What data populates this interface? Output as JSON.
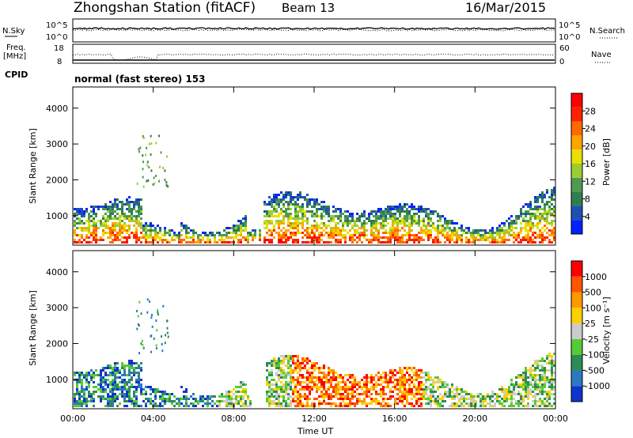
{
  "header": {
    "station": "Zhongshan Station (fitACF)",
    "beam": "Beam 13",
    "date": "16/Mar/2015"
  },
  "status_panels": {
    "nsky_label": "N.Sky",
    "nsky_ticks": [
      "10^5",
      "10^0"
    ],
    "nsearch_label": "N.Search",
    "nsearch_ticks": [
      "10^5",
      "10^0"
    ],
    "freq_label": "Freq.",
    "freq_unit": "[MHz]",
    "freq_ticks": [
      "18",
      "8"
    ],
    "nave_label": "Nave",
    "nave_ticks": [
      "60",
      "0"
    ],
    "cpid_label": "CPID",
    "cpid_text": "normal (fast stereo) 153"
  },
  "chart_data": [
    {
      "type": "heatmap",
      "name": "power",
      "ylabel": "Slant Range [km]",
      "xlabel": "",
      "yticks": [
        "4000",
        "3000",
        "2000",
        "1000"
      ],
      "ylim": [
        180,
        4590
      ],
      "colorbar_label": "Power [dB]",
      "colorbar_ticks": [
        "28",
        "24",
        "20",
        "16",
        "12",
        "8",
        "4"
      ],
      "colorbar_colors": [
        "#0022ff",
        "#1f4fb4",
        "#2f7f4e",
        "#4f9a4f",
        "#9acd32",
        "#e8e000",
        "#ffa500",
        "#ff6a00",
        "#ff2200",
        "#ff0000"
      ]
    },
    {
      "type": "heatmap",
      "name": "velocity",
      "ylabel": "Slant Range [km]",
      "xlabel": "Time UT",
      "yticks": [
        "4000",
        "3000",
        "2000",
        "1000"
      ],
      "ylim": [
        180,
        4590
      ],
      "xticks": [
        "00:00",
        "04:00",
        "08:00",
        "12:00",
        "16:00",
        "20:00",
        "00:00"
      ],
      "colorbar_label": "Velocity [m s⁻¹]",
      "colorbar_ticks": [
        "1000",
        "500",
        "100",
        "25",
        "-25",
        "-100",
        "-500",
        "-1000"
      ],
      "colorbar_colors": [
        "#1133cc",
        "#2a7abf",
        "#2e8b57",
        "#55cc33",
        "#cccccc",
        "#ffd000",
        "#ff9900",
        "#ff5500",
        "#ff0000"
      ]
    }
  ]
}
